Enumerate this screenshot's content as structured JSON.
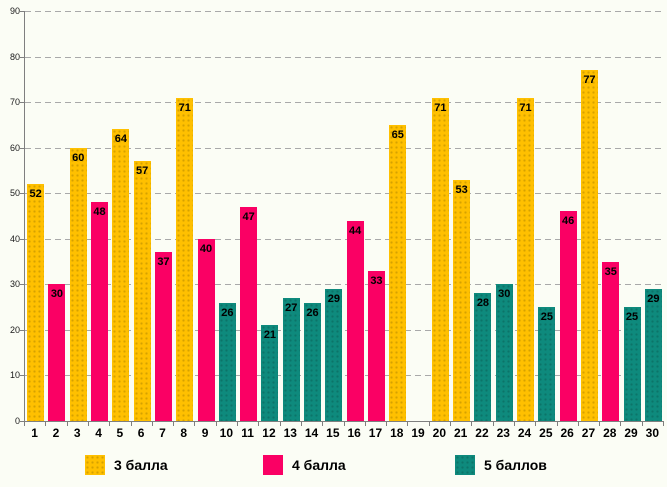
{
  "chart_data": {
    "type": "bar",
    "title": "",
    "xlabel": "",
    "ylabel": "",
    "ylim": [
      0,
      90
    ],
    "yticks": [
      0,
      10,
      20,
      30,
      40,
      50,
      60,
      70,
      80,
      90
    ],
    "grid": "horizontal-dashed",
    "legend_position": "bottom",
    "series": [
      {
        "name": "3 балла",
        "color": "#FFC000",
        "pattern": "dots"
      },
      {
        "name": "4 балла",
        "color": "#FA0064",
        "pattern": "solid"
      },
      {
        "name": "5 баллов",
        "color": "#0E8A7D",
        "pattern": "dots"
      }
    ],
    "categories": [
      "1",
      "2",
      "3",
      "4",
      "5",
      "6",
      "7",
      "8",
      "9",
      "10",
      "11",
      "12",
      "13",
      "14",
      "15",
      "16",
      "17",
      "18",
      "19",
      "20",
      "21",
      "22",
      "23",
      "24",
      "25",
      "26",
      "27",
      "28",
      "29",
      "30"
    ],
    "points": [
      {
        "category": "1",
        "series": "3 балла",
        "series_index": 0,
        "value": 52
      },
      {
        "category": "2",
        "series": "4 балла",
        "series_index": 1,
        "value": 30
      },
      {
        "category": "3",
        "series": "3 балла",
        "series_index": 0,
        "value": 60
      },
      {
        "category": "4",
        "series": "4 балла",
        "series_index": 1,
        "value": 48
      },
      {
        "category": "5",
        "series": "3 балла",
        "series_index": 0,
        "value": 64
      },
      {
        "category": "6",
        "series": "3 балла",
        "series_index": 0,
        "value": 57
      },
      {
        "category": "7",
        "series": "4 балла",
        "series_index": 1,
        "value": 37
      },
      {
        "category": "8",
        "series": "3 балла",
        "series_index": 0,
        "value": 71
      },
      {
        "category": "9",
        "series": "4 балла",
        "series_index": 1,
        "value": 40
      },
      {
        "category": "10",
        "series": "5 баллов",
        "series_index": 2,
        "value": 26
      },
      {
        "category": "11",
        "series": "4 балла",
        "series_index": 1,
        "value": 47
      },
      {
        "category": "12",
        "series": "5 баллов",
        "series_index": 2,
        "value": 21
      },
      {
        "category": "13",
        "series": "5 баллов",
        "series_index": 2,
        "value": 27
      },
      {
        "category": "14",
        "series": "5 баллов",
        "series_index": 2,
        "value": 26
      },
      {
        "category": "15",
        "series": "5 баллов",
        "series_index": 2,
        "value": 29
      },
      {
        "category": "16",
        "series": "4 балла",
        "series_index": 1,
        "value": 44
      },
      {
        "category": "17",
        "series": "4 балла",
        "series_index": 1,
        "value": 33
      },
      {
        "category": "18",
        "series": "3 балла",
        "series_index": 0,
        "value": 65
      },
      {
        "category": "19",
        "series": null,
        "series_index": null,
        "value": null
      },
      {
        "category": "20",
        "series": "3 балла",
        "series_index": 0,
        "value": 71
      },
      {
        "category": "21",
        "series": "3 балла",
        "series_index": 0,
        "value": 53
      },
      {
        "category": "22",
        "series": "5 баллов",
        "series_index": 2,
        "value": 28
      },
      {
        "category": "23",
        "series": "5 баллов",
        "series_index": 2,
        "value": 30
      },
      {
        "category": "24",
        "series": "3 балла",
        "series_index": 0,
        "value": 71
      },
      {
        "category": "25",
        "series": "5 баллов",
        "series_index": 2,
        "value": 25
      },
      {
        "category": "26",
        "series": "4 балла",
        "series_index": 1,
        "value": 46
      },
      {
        "category": "27",
        "series": "3 балла",
        "series_index": 0,
        "value": 77
      },
      {
        "category": "28",
        "series": "4 балла",
        "series_index": 1,
        "value": 35
      },
      {
        "category": "29",
        "series": "5 баллов",
        "series_index": 2,
        "value": 25
      },
      {
        "category": "30",
        "series": "5 баллов",
        "series_index": 2,
        "value": 29
      }
    ]
  },
  "colors": {
    "background": "#FBFDF5",
    "gridline": "#A9A9A9",
    "axis": "#7F7F7F",
    "bar_label": "#000000"
  }
}
